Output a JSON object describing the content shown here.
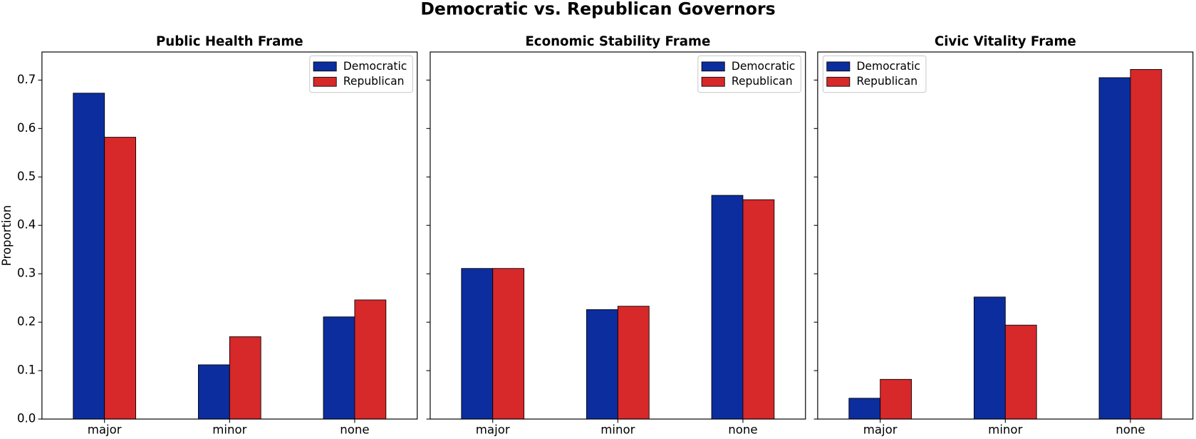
{
  "title": "Democratic vs. Republican Governors",
  "chart_data": [
    {
      "type": "bar",
      "title": "Public Health Frame",
      "y_label": "Proportion",
      "categories": [
        "major",
        "minor",
        "none"
      ],
      "series": [
        {
          "name": "Democratic",
          "color": "#0c2d9e",
          "values": [
            0.673,
            0.112,
            0.211
          ]
        },
        {
          "name": "Republican",
          "color": "#d7282a",
          "values": [
            0.582,
            0.17,
            0.246
          ]
        }
      ],
      "ylim": [
        0,
        0.758
      ],
      "yticks": [
        {
          "value": 0,
          "label": "0.0"
        },
        0.1,
        0.2,
        0.3,
        0.4,
        0.5,
        0.6,
        0.7
      ],
      "legend": "upper right"
    },
    {
      "type": "bar",
      "title": "Economic Stability Frame",
      "categories": [
        "major",
        "minor",
        "none"
      ],
      "series": [
        {
          "name": "Democratic",
          "color": "#0c2d9e",
          "values": [
            0.311,
            0.226,
            0.462
          ]
        },
        {
          "name": "Republican",
          "color": "#d7282a",
          "values": [
            0.311,
            0.233,
            0.453
          ]
        }
      ],
      "sharey": true,
      "legend": "upper right"
    },
    {
      "type": "bar",
      "title": "Civic Vitality Frame",
      "categories": [
        "major",
        "minor",
        "none"
      ],
      "series": [
        {
          "name": "Democratic",
          "color": "#0c2d9e",
          "values": [
            0.043,
            0.252,
            0.705
          ]
        },
        {
          "name": "Republican",
          "color": "#d7282a",
          "values": [
            0.082,
            0.194,
            0.722
          ]
        }
      ],
      "sharey": true,
      "legend": "upper left"
    }
  ]
}
